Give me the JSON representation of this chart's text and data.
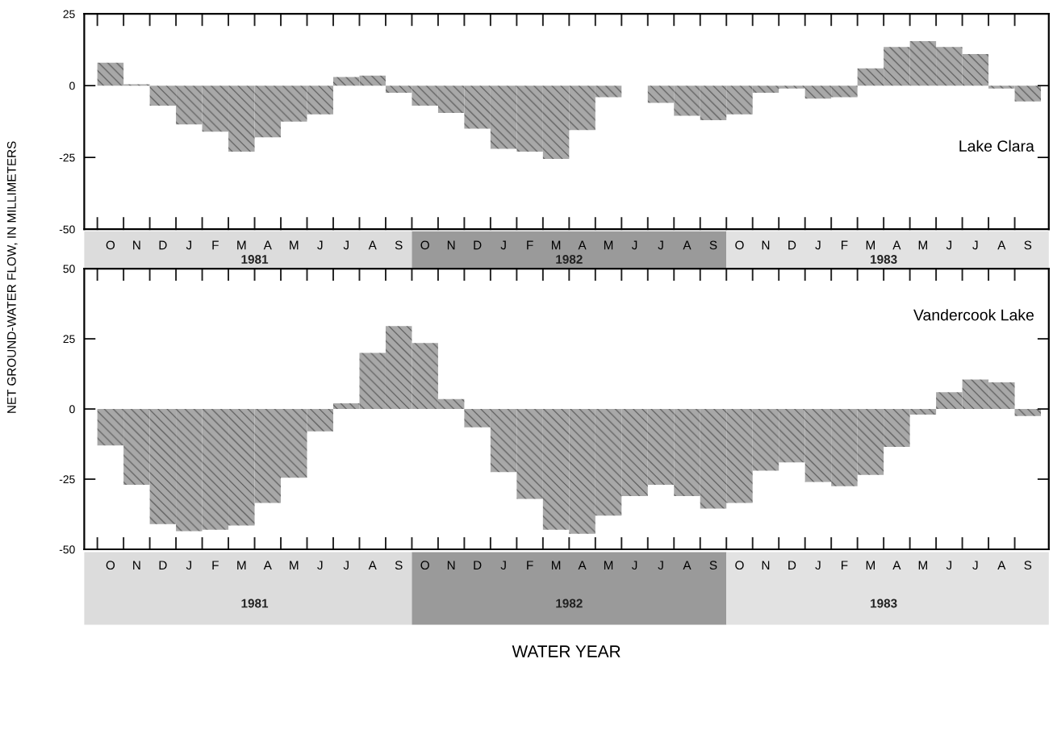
{
  "chart_data": [
    {
      "type": "bar",
      "title": "Lake Clara",
      "ylabel": "NET GROUND-WATER FLOW, IN MILLIMETERS",
      "categories": [
        "O",
        "N",
        "D",
        "J",
        "F",
        "M",
        "A",
        "M",
        "J",
        "J",
        "A",
        "S",
        "O",
        "N",
        "D",
        "J",
        "F",
        "M",
        "A",
        "M",
        "J",
        "J",
        "A",
        "S",
        "O",
        "N",
        "D",
        "J",
        "F",
        "M",
        "A",
        "M",
        "J",
        "J",
        "A",
        "S"
      ],
      "values": [
        8,
        0.5,
        -7,
        -13.5,
        -16,
        -23,
        -18,
        -12.5,
        -10,
        3,
        3.5,
        -2.5,
        -7,
        -9.5,
        -15,
        -22,
        -23,
        -25.5,
        -15.5,
        -4,
        0,
        -6,
        -10.5,
        -12,
        -10,
        -2.5,
        -1,
        -4.5,
        -4,
        6,
        13.5,
        15.5,
        13.5,
        11,
        -1,
        -5.5
      ],
      "color": "#a8a8a8",
      "ylim": [
        -50,
        25
      ],
      "yticks": [
        25,
        0,
        -25,
        -50
      ],
      "grid": false,
      "annotations": [
        "1981",
        "1982",
        "1983"
      ]
    },
    {
      "type": "bar",
      "title": "Vandercook Lake",
      "xlabel": "WATER YEAR",
      "categories": [
        "O",
        "N",
        "D",
        "J",
        "F",
        "M",
        "A",
        "M",
        "J",
        "J",
        "A",
        "S",
        "O",
        "N",
        "D",
        "J",
        "F",
        "M",
        "A",
        "M",
        "J",
        "J",
        "A",
        "S",
        "O",
        "N",
        "D",
        "J",
        "F",
        "M",
        "A",
        "M",
        "J",
        "J",
        "A",
        "S"
      ],
      "values": [
        -13,
        -27,
        -41,
        -43.5,
        -43,
        -41.5,
        -33.5,
        -24.5,
        -8,
        2,
        20,
        29.5,
        23.5,
        3.5,
        -6.5,
        -22.5,
        -32,
        -43,
        -44.5,
        -38,
        -31,
        -27,
        -31,
        -35.5,
        -33.5,
        -22,
        -19,
        -26,
        -27.5,
        -23.5,
        -13.5,
        -2,
        6,
        10.5,
        9.5,
        -2.5
      ],
      "color": "#a8a8a8",
      "ylim": [
        -50,
        50
      ],
      "yticks": [
        50,
        25,
        0,
        -25,
        -50
      ],
      "grid": false,
      "annotations": [
        "1981",
        "1982",
        "1983"
      ]
    }
  ]
}
